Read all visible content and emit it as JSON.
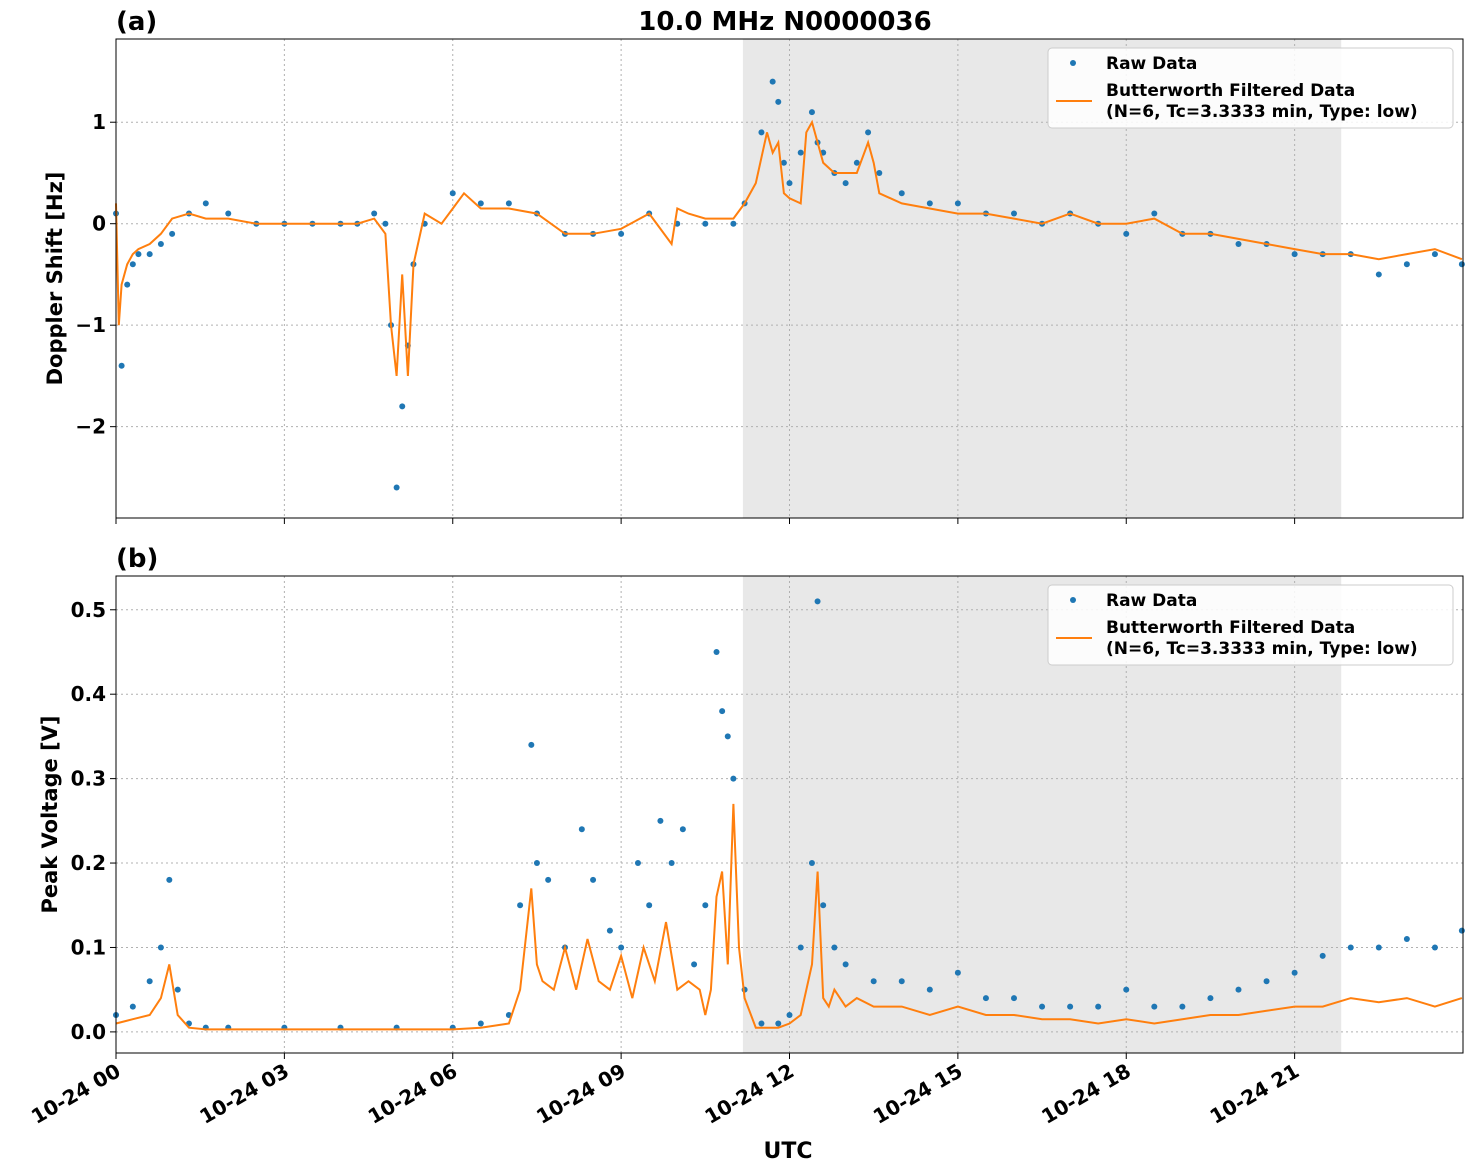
{
  "figure_title": "10.0 MHz N0000036",
  "shading": {
    "color": "#e8e8e8",
    "start_hour": 11.17,
    "end_hour": 21.83
  },
  "colors": {
    "raw": "#1f77b4",
    "filtered": "#ff7f0e"
  },
  "xlabel": "UTC",
  "chart_data": [
    {
      "type": "scatter",
      "panel_label": "(a)",
      "ylabel": "Doppler Shift [Hz]",
      "xlim": [
        0,
        24
      ],
      "ylim": [
        -2.9,
        1.82
      ],
      "y_ticks": [
        1,
        0,
        -1,
        -2
      ],
      "y_tick_labels": [
        "1",
        "0",
        "−1",
        "−2"
      ],
      "x_ticks": [
        0,
        3,
        6,
        9,
        12,
        15,
        18,
        21
      ],
      "x_tick_labels": [
        "10-24 00",
        "10-24 03",
        "10-24 06",
        "10-24 09",
        "10-24 12",
        "10-24 15",
        "10-24 18",
        "10-24 21"
      ],
      "grid": true,
      "legend_position": "top-right",
      "series": [
        {
          "name": "Raw Data",
          "style": "points",
          "x": [
            0.0,
            0.1,
            0.2,
            0.3,
            0.4,
            0.6,
            0.8,
            1.0,
            1.3,
            1.6,
            2.0,
            2.5,
            3.0,
            3.5,
            4.0,
            4.3,
            4.6,
            4.8,
            4.9,
            5.0,
            5.1,
            5.2,
            5.3,
            5.5,
            6.0,
            6.5,
            7.0,
            7.5,
            8.0,
            8.5,
            9.0,
            9.5,
            10.0,
            10.5,
            11.0,
            11.2,
            11.5,
            11.7,
            11.8,
            11.9,
            12.0,
            12.2,
            12.4,
            12.5,
            12.6,
            12.8,
            13.0,
            13.2,
            13.4,
            13.6,
            14.0,
            14.5,
            15.0,
            15.5,
            16.0,
            16.5,
            17.0,
            17.5,
            18.0,
            18.5,
            19.0,
            19.5,
            20.0,
            20.5,
            21.0,
            21.5,
            22.0,
            22.5,
            23.0,
            23.5,
            23.98
          ],
          "y": [
            0.1,
            -1.4,
            -0.6,
            -0.4,
            -0.3,
            -0.3,
            -0.2,
            -0.1,
            0.1,
            0.2,
            0.1,
            0.0,
            0.0,
            0.0,
            0.0,
            0.0,
            0.1,
            0.0,
            -1.0,
            -2.6,
            -1.8,
            -1.2,
            -0.4,
            0.0,
            0.3,
            0.2,
            0.2,
            0.1,
            -0.1,
            -0.1,
            -0.1,
            0.1,
            0.0,
            0.0,
            0.0,
            0.2,
            0.9,
            1.4,
            1.2,
            0.6,
            0.4,
            0.7,
            1.1,
            0.8,
            0.7,
            0.5,
            0.4,
            0.6,
            0.9,
            0.5,
            0.3,
            0.2,
            0.2,
            0.1,
            0.1,
            0.0,
            0.1,
            0.0,
            -0.1,
            0.1,
            -0.1,
            -0.1,
            -0.2,
            -0.2,
            -0.3,
            -0.3,
            -0.3,
            -0.5,
            -0.4,
            -0.3,
            -0.4
          ]
        },
        {
          "name": "Butterworth Filtered Data\n(N=6, Tc=3.3333 min, Type: low)",
          "style": "line",
          "x": [
            0.0,
            0.05,
            0.1,
            0.2,
            0.3,
            0.4,
            0.6,
            0.8,
            1.0,
            1.3,
            1.6,
            2.0,
            2.5,
            3.0,
            3.5,
            4.0,
            4.3,
            4.6,
            4.8,
            4.9,
            5.0,
            5.1,
            5.2,
            5.3,
            5.5,
            5.8,
            6.0,
            6.2,
            6.5,
            7.0,
            7.5,
            8.0,
            8.5,
            9.0,
            9.5,
            9.9,
            10.0,
            10.2,
            10.5,
            11.0,
            11.2,
            11.4,
            11.6,
            11.7,
            11.8,
            11.9,
            12.0,
            12.2,
            12.3,
            12.4,
            12.5,
            12.6,
            12.8,
            13.0,
            13.2,
            13.4,
            13.5,
            13.6,
            14.0,
            14.5,
            15.0,
            15.5,
            16.0,
            16.5,
            17.0,
            17.5,
            18.0,
            18.5,
            19.0,
            19.5,
            20.0,
            20.5,
            21.0,
            21.5,
            22.0,
            22.5,
            23.0,
            23.5,
            23.98
          ],
          "y": [
            0.2,
            -1.0,
            -0.6,
            -0.4,
            -0.3,
            -0.25,
            -0.2,
            -0.1,
            0.05,
            0.1,
            0.05,
            0.05,
            0.0,
            0.0,
            0.0,
            0.0,
            0.0,
            0.05,
            -0.1,
            -1.0,
            -1.5,
            -0.5,
            -1.5,
            -0.4,
            0.1,
            0.0,
            0.15,
            0.3,
            0.15,
            0.15,
            0.1,
            -0.1,
            -0.1,
            -0.05,
            0.1,
            -0.2,
            0.15,
            0.1,
            0.05,
            0.05,
            0.2,
            0.4,
            0.9,
            0.7,
            0.8,
            0.3,
            0.25,
            0.2,
            0.9,
            1.0,
            0.8,
            0.6,
            0.5,
            0.5,
            0.5,
            0.8,
            0.6,
            0.3,
            0.2,
            0.15,
            0.1,
            0.1,
            0.05,
            0.0,
            0.1,
            0.0,
            0.0,
            0.05,
            -0.1,
            -0.1,
            -0.15,
            -0.2,
            -0.25,
            -0.3,
            -0.3,
            -0.35,
            -0.3,
            -0.25,
            -0.35
          ]
        }
      ]
    },
    {
      "type": "scatter",
      "panel_label": "(b)",
      "ylabel": "Peak Voltage [V]",
      "xlim": [
        0,
        24
      ],
      "ylim": [
        -0.025,
        0.54
      ],
      "y_ticks": [
        0.0,
        0.1,
        0.2,
        0.3,
        0.4,
        0.5
      ],
      "y_tick_labels": [
        "0.0",
        "0.1",
        "0.2",
        "0.3",
        "0.4",
        "0.5"
      ],
      "x_ticks": [
        0,
        3,
        6,
        9,
        12,
        15,
        18,
        21
      ],
      "x_tick_labels": [
        "10-24 00",
        "10-24 03",
        "10-24 06",
        "10-24 09",
        "10-24 12",
        "10-24 15",
        "10-24 18",
        "10-24 21"
      ],
      "grid": true,
      "legend_position": "top-right",
      "series": [
        {
          "name": "Raw Data",
          "style": "points",
          "x": [
            0.0,
            0.3,
            0.6,
            0.8,
            0.95,
            1.1,
            1.3,
            1.6,
            2.0,
            3.0,
            4.0,
            5.0,
            6.0,
            6.5,
            7.0,
            7.2,
            7.4,
            7.5,
            7.7,
            8.0,
            8.3,
            8.5,
            8.8,
            9.0,
            9.3,
            9.5,
            9.7,
            9.9,
            10.1,
            10.3,
            10.5,
            10.7,
            10.8,
            10.9,
            11.0,
            11.2,
            11.5,
            11.8,
            12.0,
            12.2,
            12.4,
            12.5,
            12.6,
            12.8,
            13.0,
            13.5,
            14.0,
            14.5,
            15.0,
            15.5,
            16.0,
            16.5,
            17.0,
            17.5,
            18.0,
            18.5,
            19.0,
            19.5,
            20.0,
            20.5,
            21.0,
            21.5,
            22.0,
            22.5,
            23.0,
            23.5,
            23.98
          ],
          "y": [
            0.02,
            0.03,
            0.06,
            0.1,
            0.18,
            0.05,
            0.01,
            0.005,
            0.005,
            0.005,
            0.005,
            0.005,
            0.005,
            0.01,
            0.02,
            0.15,
            0.34,
            0.2,
            0.18,
            0.1,
            0.24,
            0.18,
            0.12,
            0.1,
            0.2,
            0.15,
            0.25,
            0.2,
            0.24,
            0.08,
            0.15,
            0.45,
            0.38,
            0.35,
            0.3,
            0.05,
            0.01,
            0.01,
            0.02,
            0.1,
            0.2,
            0.51,
            0.15,
            0.1,
            0.08,
            0.06,
            0.06,
            0.05,
            0.07,
            0.04,
            0.04,
            0.03,
            0.03,
            0.03,
            0.05,
            0.03,
            0.03,
            0.04,
            0.05,
            0.06,
            0.07,
            0.09,
            0.1,
            0.1,
            0.11,
            0.1,
            0.12
          ]
        },
        {
          "name": "Butterworth Filtered Data\n(N=6, Tc=3.3333 min, Type: low)",
          "style": "line",
          "x": [
            0.0,
            0.3,
            0.6,
            0.8,
            0.95,
            1.1,
            1.3,
            1.6,
            2.0,
            3.0,
            4.0,
            5.0,
            6.0,
            6.5,
            7.0,
            7.2,
            7.4,
            7.5,
            7.6,
            7.8,
            8.0,
            8.2,
            8.4,
            8.6,
            8.8,
            9.0,
            9.2,
            9.4,
            9.6,
            9.8,
            10.0,
            10.2,
            10.4,
            10.5,
            10.6,
            10.7,
            10.8,
            10.9,
            11.0,
            11.1,
            11.2,
            11.4,
            11.6,
            11.8,
            12.0,
            12.2,
            12.4,
            12.5,
            12.6,
            12.7,
            12.8,
            13.0,
            13.2,
            13.5,
            14.0,
            14.5,
            15.0,
            15.5,
            16.0,
            16.5,
            17.0,
            17.5,
            18.0,
            18.5,
            19.0,
            19.5,
            20.0,
            20.5,
            21.0,
            21.5,
            22.0,
            22.5,
            23.0,
            23.5,
            23.98
          ],
          "y": [
            0.01,
            0.015,
            0.02,
            0.04,
            0.08,
            0.02,
            0.005,
            0.003,
            0.003,
            0.003,
            0.003,
            0.003,
            0.003,
            0.005,
            0.01,
            0.05,
            0.17,
            0.08,
            0.06,
            0.05,
            0.1,
            0.05,
            0.11,
            0.06,
            0.05,
            0.09,
            0.04,
            0.1,
            0.06,
            0.13,
            0.05,
            0.06,
            0.05,
            0.02,
            0.05,
            0.16,
            0.19,
            0.08,
            0.27,
            0.1,
            0.04,
            0.005,
            0.005,
            0.005,
            0.01,
            0.02,
            0.08,
            0.19,
            0.04,
            0.03,
            0.05,
            0.03,
            0.04,
            0.03,
            0.03,
            0.02,
            0.03,
            0.02,
            0.02,
            0.015,
            0.015,
            0.01,
            0.015,
            0.01,
            0.015,
            0.02,
            0.02,
            0.025,
            0.03,
            0.03,
            0.04,
            0.035,
            0.04,
            0.03,
            0.04
          ]
        }
      ]
    }
  ]
}
